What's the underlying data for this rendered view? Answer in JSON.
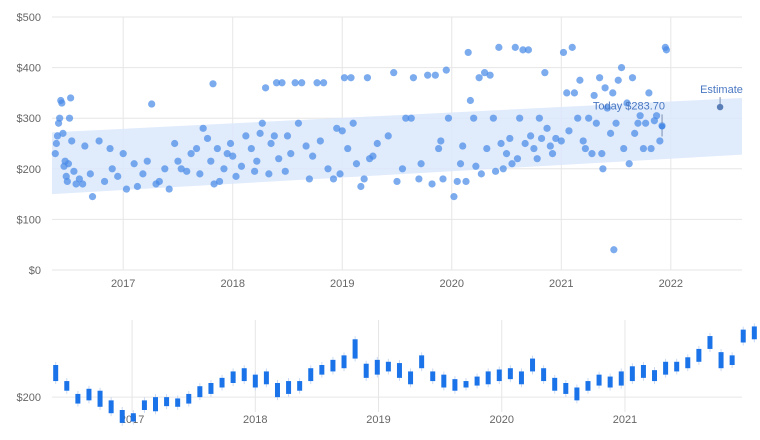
{
  "colors": {
    "point": "#4a8be8",
    "band": "#dbe8fb",
    "candle": "#1a73e8",
    "grid": "#e6e6e6",
    "axis_text": "#666666",
    "annotation_text": "#4a78c2"
  },
  "chart_data": [
    {
      "type": "scatter",
      "x_ticks": [
        "2017",
        "2018",
        "2019",
        "2020",
        "2021",
        "2022"
      ],
      "y_ticks": [
        "$0",
        "$100",
        "$200",
        "$300",
        "$400",
        "$500"
      ],
      "xlim": [
        2016.35,
        2022.65
      ],
      "ylim": [
        0,
        500
      ],
      "grid": true,
      "band": {
        "x": [
          2016.35,
          2022.65
        ],
        "lower": [
          150,
          228
        ],
        "upper": [
          272,
          340
        ]
      },
      "annotations": [
        {
          "text": "Today $283.70",
          "x": 2021.92,
          "y": 283.7
        },
        {
          "text": "Estimate",
          "x": 2022.45,
          "y": 322
        }
      ],
      "points": [
        [
          2016.38,
          230
        ],
        [
          2016.39,
          250
        ],
        [
          2016.4,
          265
        ],
        [
          2016.41,
          290
        ],
        [
          2016.42,
          300
        ],
        [
          2016.43,
          335
        ],
        [
          2016.44,
          330
        ],
        [
          2016.45,
          270
        ],
        [
          2016.46,
          205
        ],
        [
          2016.47,
          215
        ],
        [
          2016.48,
          185
        ],
        [
          2016.49,
          175
        ],
        [
          2016.5,
          210
        ],
        [
          2016.51,
          300
        ],
        [
          2016.52,
          340
        ],
        [
          2016.53,
          255
        ],
        [
          2016.55,
          195
        ],
        [
          2016.57,
          170
        ],
        [
          2016.6,
          180
        ],
        [
          2016.63,
          170
        ],
        [
          2016.65,
          245
        ],
        [
          2016.7,
          190
        ],
        [
          2016.72,
          145
        ],
        [
          2016.78,
          255
        ],
        [
          2016.83,
          175
        ],
        [
          2016.88,
          240
        ],
        [
          2016.9,
          200
        ],
        [
          2016.95,
          185
        ],
        [
          2017.0,
          230
        ],
        [
          2017.03,
          160
        ],
        [
          2017.1,
          210
        ],
        [
          2017.13,
          165
        ],
        [
          2017.18,
          190
        ],
        [
          2017.22,
          215
        ],
        [
          2017.26,
          328
        ],
        [
          2017.3,
          170
        ],
        [
          2017.33,
          175
        ],
        [
          2017.38,
          200
        ],
        [
          2017.42,
          160
        ],
        [
          2017.47,
          250
        ],
        [
          2017.5,
          215
        ],
        [
          2017.53,
          200
        ],
        [
          2017.58,
          195
        ],
        [
          2017.62,
          230
        ],
        [
          2017.67,
          240
        ],
        [
          2017.7,
          190
        ],
        [
          2017.73,
          280
        ],
        [
          2017.77,
          260
        ],
        [
          2017.8,
          215
        ],
        [
          2017.82,
          368
        ],
        [
          2017.83,
          170
        ],
        [
          2017.86,
          240
        ],
        [
          2017.88,
          175
        ],
        [
          2017.92,
          200
        ],
        [
          2017.95,
          230
        ],
        [
          2017.98,
          250
        ],
        [
          2018.0,
          225
        ],
        [
          2018.03,
          185
        ],
        [
          2018.08,
          205
        ],
        [
          2018.12,
          265
        ],
        [
          2018.17,
          240
        ],
        [
          2018.2,
          195
        ],
        [
          2018.22,
          215
        ],
        [
          2018.25,
          270
        ],
        [
          2018.27,
          290
        ],
        [
          2018.3,
          360
        ],
        [
          2018.33,
          190
        ],
        [
          2018.35,
          250
        ],
        [
          2018.38,
          265
        ],
        [
          2018.4,
          370
        ],
        [
          2018.42,
          220
        ],
        [
          2018.45,
          370
        ],
        [
          2018.48,
          195
        ],
        [
          2018.5,
          265
        ],
        [
          2018.53,
          230
        ],
        [
          2018.57,
          370
        ],
        [
          2018.6,
          290
        ],
        [
          2018.63,
          370
        ],
        [
          2018.67,
          245
        ],
        [
          2018.7,
          180
        ],
        [
          2018.73,
          225
        ],
        [
          2018.77,
          370
        ],
        [
          2018.8,
          255
        ],
        [
          2018.83,
          370
        ],
        [
          2018.87,
          200
        ],
        [
          2018.92,
          180
        ],
        [
          2018.95,
          280
        ],
        [
          2018.98,
          190
        ],
        [
          2019.0,
          275
        ],
        [
          2019.02,
          380
        ],
        [
          2019.05,
          240
        ],
        [
          2019.08,
          380
        ],
        [
          2019.1,
          290
        ],
        [
          2019.13,
          210
        ],
        [
          2019.17,
          165
        ],
        [
          2019.2,
          180
        ],
        [
          2019.23,
          380
        ],
        [
          2019.25,
          220
        ],
        [
          2019.28,
          225
        ],
        [
          2019.32,
          250
        ],
        [
          2019.42,
          265
        ],
        [
          2019.47,
          390
        ],
        [
          2019.5,
          175
        ],
        [
          2019.55,
          200
        ],
        [
          2019.58,
          300
        ],
        [
          2019.63,
          300
        ],
        [
          2019.65,
          380
        ],
        [
          2019.7,
          180
        ],
        [
          2019.72,
          210
        ],
        [
          2019.78,
          385
        ],
        [
          2019.82,
          170
        ],
        [
          2019.85,
          385
        ],
        [
          2019.88,
          240
        ],
        [
          2019.9,
          255
        ],
        [
          2019.92,
          180
        ],
        [
          2019.95,
          395
        ],
        [
          2019.97,
          300
        ],
        [
          2020.02,
          145
        ],
        [
          2020.05,
          175
        ],
        [
          2020.08,
          210
        ],
        [
          2020.1,
          245
        ],
        [
          2020.13,
          175
        ],
        [
          2020.15,
          430
        ],
        [
          2020.17,
          335
        ],
        [
          2020.2,
          300
        ],
        [
          2020.22,
          205
        ],
        [
          2020.25,
          380
        ],
        [
          2020.27,
          190
        ],
        [
          2020.3,
          390
        ],
        [
          2020.32,
          240
        ],
        [
          2020.35,
          385
        ],
        [
          2020.38,
          300
        ],
        [
          2020.4,
          195
        ],
        [
          2020.43,
          440
        ],
        [
          2020.45,
          250
        ],
        [
          2020.47,
          200
        ],
        [
          2020.5,
          230
        ],
        [
          2020.53,
          260
        ],
        [
          2020.55,
          210
        ],
        [
          2020.58,
          440
        ],
        [
          2020.6,
          220
        ],
        [
          2020.62,
          300
        ],
        [
          2020.65,
          435
        ],
        [
          2020.67,
          250
        ],
        [
          2020.7,
          435
        ],
        [
          2020.72,
          265
        ],
        [
          2020.75,
          240
        ],
        [
          2020.78,
          220
        ],
        [
          2020.8,
          300
        ],
        [
          2020.82,
          260
        ],
        [
          2020.85,
          390
        ],
        [
          2020.87,
          280
        ],
        [
          2020.9,
          245
        ],
        [
          2020.92,
          230
        ],
        [
          2020.95,
          260
        ],
        [
          2021.0,
          255
        ],
        [
          2021.02,
          430
        ],
        [
          2021.05,
          350
        ],
        [
          2021.07,
          275
        ],
        [
          2021.1,
          440
        ],
        [
          2021.12,
          350
        ],
        [
          2021.15,
          300
        ],
        [
          2021.17,
          375
        ],
        [
          2021.2,
          255
        ],
        [
          2021.22,
          240
        ],
        [
          2021.25,
          300
        ],
        [
          2021.28,
          230
        ],
        [
          2021.3,
          345
        ],
        [
          2021.32,
          290
        ],
        [
          2021.35,
          380
        ],
        [
          2021.37,
          230
        ],
        [
          2021.38,
          200
        ],
        [
          2021.4,
          360
        ],
        [
          2021.42,
          320
        ],
        [
          2021.45,
          270
        ],
        [
          2021.47,
          350
        ],
        [
          2021.48,
          40
        ],
        [
          2021.5,
          290
        ],
        [
          2021.52,
          375
        ],
        [
          2021.55,
          400
        ],
        [
          2021.57,
          240
        ],
        [
          2021.6,
          330
        ],
        [
          2021.62,
          210
        ],
        [
          2021.65,
          380
        ],
        [
          2021.67,
          270
        ],
        [
          2021.7,
          290
        ],
        [
          2021.72,
          305
        ],
        [
          2021.75,
          240
        ],
        [
          2021.77,
          290
        ],
        [
          2021.8,
          350
        ],
        [
          2021.82,
          240
        ],
        [
          2021.85,
          295
        ],
        [
          2021.87,
          305
        ],
        [
          2021.9,
          255
        ],
        [
          2021.92,
          285
        ],
        [
          2021.95,
          440
        ],
        [
          2021.96,
          435
        ]
      ]
    },
    {
      "type": "candlestick",
      "x_ticks": [
        "2017",
        "2018",
        "2019",
        "2020",
        "2021"
      ],
      "y_ticks": [
        "$200"
      ],
      "xlim": [
        2016.35,
        2021.95
      ],
      "ylim": [
        180,
        320
      ],
      "grid": true,
      "candles": [
        [
          2016.38,
          225,
          250
        ],
        [
          2016.47,
          210,
          225
        ],
        [
          2016.56,
          190,
          205
        ],
        [
          2016.65,
          195,
          213
        ],
        [
          2016.74,
          185,
          210
        ],
        [
          2016.83,
          175,
          195
        ],
        [
          2016.92,
          160,
          180
        ],
        [
          2017.01,
          162,
          175
        ],
        [
          2017.1,
          180,
          195
        ],
        [
          2017.19,
          178,
          200
        ],
        [
          2017.28,
          186,
          200
        ],
        [
          2017.37,
          185,
          198
        ],
        [
          2017.46,
          190,
          205
        ],
        [
          2017.55,
          200,
          217
        ],
        [
          2017.64,
          205,
          222
        ],
        [
          2017.73,
          215,
          230
        ],
        [
          2017.82,
          222,
          240
        ],
        [
          2017.91,
          225,
          245
        ],
        [
          2018.0,
          215,
          235
        ],
        [
          2018.09,
          220,
          240
        ],
        [
          2018.18,
          200,
          222
        ],
        [
          2018.27,
          205,
          225
        ],
        [
          2018.36,
          210,
          225
        ],
        [
          2018.45,
          225,
          245
        ],
        [
          2018.54,
          235,
          250
        ],
        [
          2018.63,
          240,
          258
        ],
        [
          2018.72,
          245,
          265
        ],
        [
          2018.81,
          260,
          290
        ],
        [
          2018.9,
          230,
          252
        ],
        [
          2018.99,
          235,
          258
        ],
        [
          2019.08,
          240,
          255
        ],
        [
          2019.17,
          230,
          253
        ],
        [
          2019.26,
          220,
          240
        ],
        [
          2019.35,
          245,
          265
        ],
        [
          2019.44,
          225,
          240
        ],
        [
          2019.53,
          215,
          235
        ],
        [
          2019.62,
          210,
          228
        ],
        [
          2019.71,
          215,
          225
        ],
        [
          2019.8,
          218,
          232
        ],
        [
          2019.89,
          220,
          240
        ],
        [
          2019.98,
          225,
          243
        ],
        [
          2020.07,
          228,
          245
        ],
        [
          2020.16,
          220,
          240
        ],
        [
          2020.25,
          240,
          260
        ],
        [
          2020.34,
          225,
          245
        ],
        [
          2020.43,
          210,
          230
        ],
        [
          2020.52,
          205,
          222
        ],
        [
          2020.61,
          195,
          215
        ],
        [
          2020.7,
          210,
          225
        ],
        [
          2020.79,
          218,
          235
        ],
        [
          2020.88,
          215,
          232
        ],
        [
          2020.97,
          218,
          240
        ],
        [
          2021.06,
          225,
          248
        ],
        [
          2021.15,
          230,
          250
        ],
        [
          2021.24,
          225,
          242
        ],
        [
          2021.33,
          235,
          255
        ],
        [
          2021.42,
          240,
          255
        ],
        [
          2021.51,
          245,
          262
        ],
        [
          2021.6,
          255,
          275
        ],
        [
          2021.69,
          275,
          295
        ],
        [
          2021.78,
          245,
          270
        ],
        [
          2021.87,
          250,
          265
        ],
        [
          2021.96,
          285,
          305
        ],
        [
          2022.05,
          290,
          310
        ],
        [
          2022.14,
          265,
          285
        ],
        [
          2022.23,
          255,
          272
        ],
        [
          2022.32,
          275,
          300
        ],
        [
          2022.41,
          255,
          275
        ],
        [
          2022.5,
          280,
          300
        ]
      ]
    }
  ]
}
